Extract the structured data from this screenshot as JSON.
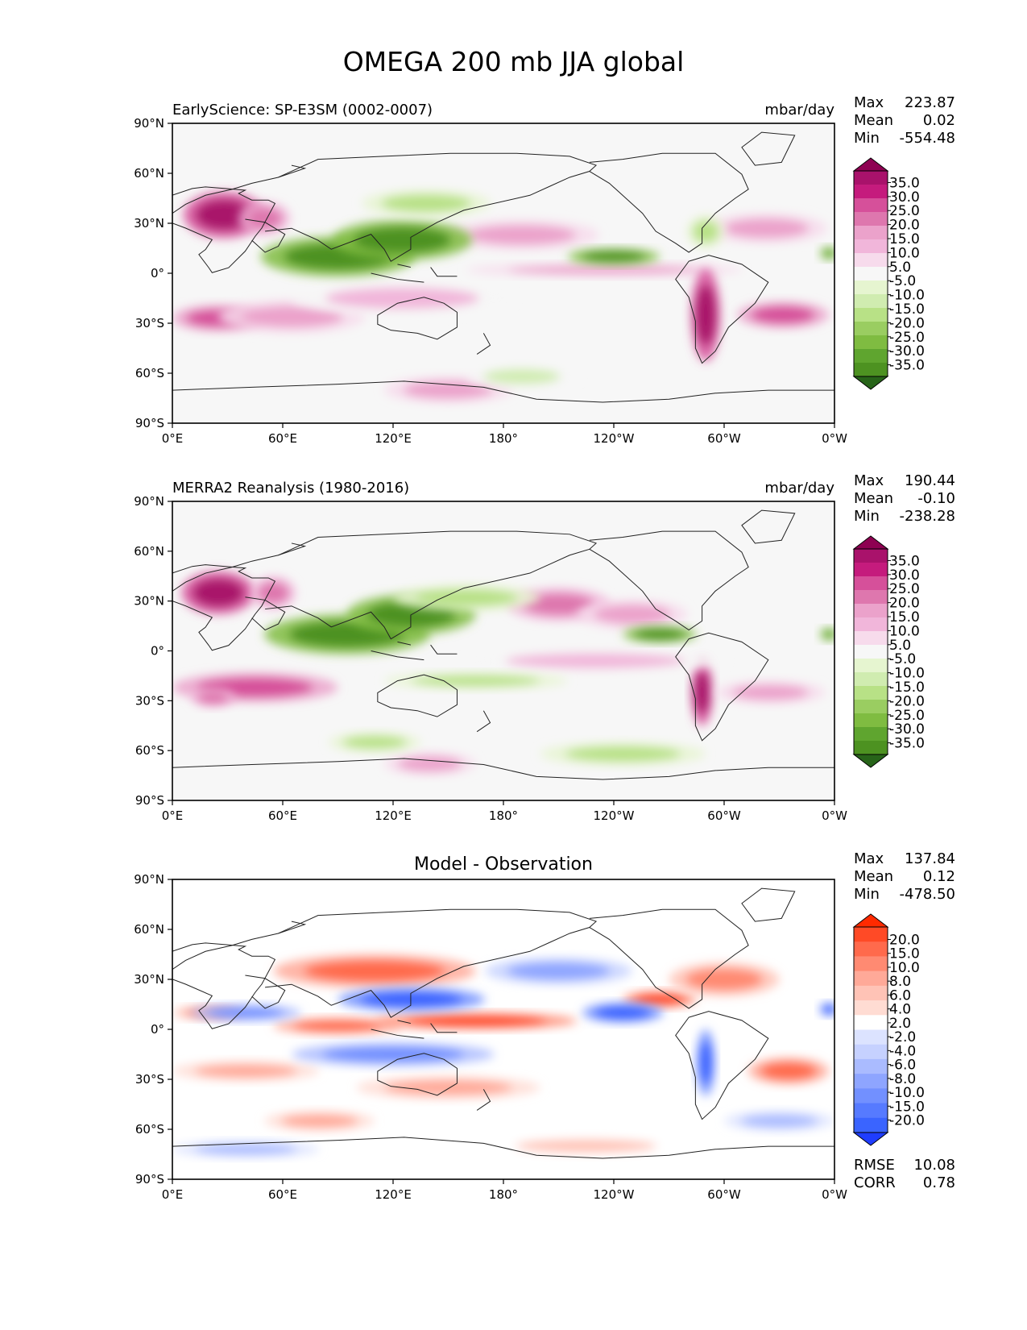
{
  "title": "OMEGA 200 mb JJA global",
  "units": "mbar/day",
  "colors": {
    "green_dark": "#276419",
    "green_mid": "#4d9221",
    "green_light": "#b8e186",
    "neutral": "#f7f7f7",
    "pink_light": "#f1b6da",
    "pink_mid": "#de77ae",
    "pink_dark": "#8e0152",
    "blue_dark": "#1f3dff",
    "blue_light": "#dce3ff",
    "red_light": "#ffd7cf",
    "red_dark": "#ff2a00",
    "coast": "#222222"
  },
  "xticks": [
    "0°E",
    "60°E",
    "120°E",
    "180°",
    "120°W",
    "60°W",
    "0°W"
  ],
  "yticks": [
    "90°N",
    "60°N",
    "30°N",
    "0°",
    "30°S",
    "60°S",
    "90°S"
  ],
  "chart_data": [
    {
      "type": "heatmap",
      "name": "test",
      "title": "EarlySciencе: SP-E3SM (0002-0007)",
      "units": "mbar/day",
      "stats": {
        "max": "223.87",
        "mean": "0.02",
        "min": "-554.48"
      },
      "stats_labels": {
        "max": "Max",
        "mean": "Mean",
        "min": "Min"
      },
      "xlim": [
        0,
        360
      ],
      "ylim": [
        -90,
        90
      ],
      "colorbar": {
        "levels": [
          "35.0",
          "30.0",
          "25.0",
          "20.0",
          "15.0",
          "10.0",
          "5.0",
          "-5.0",
          "-10.0",
          "-15.0",
          "-20.0",
          "-25.0",
          "-30.0",
          "-35.0"
        ],
        "colors": [
          "#8e0152",
          "#a9126b",
          "#c51b7d",
          "#d6509a",
          "#de77ae",
          "#eba2cb",
          "#f1b6da",
          "#f7dbec",
          "#f7f7f7",
          "#e6f5d0",
          "#d0ecb0",
          "#b8e186",
          "#9acd61",
          "#7fbc41",
          "#5fa52f",
          "#4d9221",
          "#276419"
        ]
      },
      "features": [
        {
          "kind": "pos",
          "lon": 28,
          "lat": 35,
          "rlon": 22,
          "rlat": 14,
          "level": 6
        },
        {
          "kind": "pos",
          "lon": 50,
          "lat": 33,
          "rlon": 14,
          "rlat": 10,
          "level": 3
        },
        {
          "kind": "pos",
          "lon": 25,
          "lat": -27,
          "rlon": 25,
          "rlat": 8,
          "level": 4
        },
        {
          "kind": "pos",
          "lon": 65,
          "lat": -26,
          "rlon": 40,
          "rlat": 10,
          "level": 2
        },
        {
          "kind": "pos",
          "lon": 125,
          "lat": -15,
          "rlon": 60,
          "rlat": 10,
          "level": 1
        },
        {
          "kind": "pos",
          "lon": 235,
          "lat": 2,
          "rlon": 75,
          "rlat": 4,
          "level": 2
        },
        {
          "kind": "pos",
          "lon": 290,
          "lat": -25,
          "rlon": 8,
          "rlat": 28,
          "level": 6
        },
        {
          "kind": "pos",
          "lon": 332,
          "lat": -25,
          "rlon": 25,
          "rlat": 8,
          "level": 4
        },
        {
          "kind": "pos",
          "lon": 323,
          "lat": 27,
          "rlon": 33,
          "rlat": 9,
          "level": 2
        },
        {
          "kind": "pos",
          "lon": 190,
          "lat": 23,
          "rlon": 42,
          "rlat": 9,
          "level": 2
        },
        {
          "kind": "pos",
          "lon": 150,
          "lat": -70,
          "rlon": 35,
          "rlat": 8,
          "level": 2
        },
        {
          "kind": "neg",
          "lon": 90,
          "lat": 10,
          "rlon": 42,
          "rlat": 12,
          "level": 6
        },
        {
          "kind": "neg",
          "lon": 125,
          "lat": 20,
          "rlon": 38,
          "rlat": 12,
          "level": 6
        },
        {
          "kind": "neg",
          "lon": 240,
          "lat": 10,
          "rlon": 25,
          "rlat": 5,
          "level": 6
        },
        {
          "kind": "neg",
          "lon": 138,
          "lat": 42,
          "rlon": 35,
          "rlat": 8,
          "level": 2
        },
        {
          "kind": "neg",
          "lon": 190,
          "lat": -62,
          "rlon": 30,
          "rlat": 7,
          "level": 1
        },
        {
          "kind": "neg",
          "lon": 357,
          "lat": 12,
          "rlon": 5,
          "rlat": 4,
          "level": 5
        },
        {
          "kind": "neg",
          "lon": 290,
          "lat": 25,
          "rlon": 10,
          "rlat": 10,
          "level": 2
        }
      ]
    },
    {
      "type": "heatmap",
      "name": "reference",
      "title": "MERRA2 Reanalysis (1980-2016)",
      "units": "mbar/day",
      "stats": {
        "max": "190.44",
        "mean": "-0.10",
        "min": "-238.28"
      },
      "stats_labels": {
        "max": "Max",
        "mean": "Mean",
        "min": "Min"
      },
      "xlim": [
        0,
        360
      ],
      "ylim": [
        -90,
        90
      ],
      "colorbar": {
        "levels": [
          "35.0",
          "30.0",
          "25.0",
          "20.0",
          "15.0",
          "10.0",
          "5.0",
          "-5.0",
          "-10.0",
          "-15.0",
          "-20.0",
          "-25.0",
          "-30.0",
          "-35.0"
        ],
        "colors": [
          "#8e0152",
          "#a9126b",
          "#c51b7d",
          "#d6509a",
          "#de77ae",
          "#eba2cb",
          "#f1b6da",
          "#f7dbec",
          "#f7f7f7",
          "#e6f5d0",
          "#d0ecb0",
          "#b8e186",
          "#9acd61",
          "#7fbc41",
          "#5fa52f",
          "#4d9221",
          "#276419"
        ]
      },
      "features": [
        {
          "kind": "pos",
          "lon": 25,
          "lat": 35,
          "rlon": 20,
          "rlat": 13,
          "level": 6
        },
        {
          "kind": "pos",
          "lon": 55,
          "lat": 35,
          "rlon": 12,
          "rlat": 10,
          "level": 3
        },
        {
          "kind": "pos",
          "lon": 45,
          "lat": -22,
          "rlon": 45,
          "rlat": 9,
          "level": 4
        },
        {
          "kind": "pos",
          "lon": 22,
          "lat": -28,
          "rlon": 12,
          "rlat": 6,
          "level": 3
        },
        {
          "kind": "pos",
          "lon": 210,
          "lat": 28,
          "rlon": 28,
          "rlat": 10,
          "level": 3
        },
        {
          "kind": "pos",
          "lon": 250,
          "lat": 22,
          "rlon": 30,
          "rlat": 9,
          "level": 2
        },
        {
          "kind": "pos",
          "lon": 288,
          "lat": -25,
          "rlon": 6,
          "rlat": 20,
          "level": 6
        },
        {
          "kind": "pos",
          "lon": 325,
          "lat": -25,
          "rlon": 30,
          "rlat": 7,
          "level": 2
        },
        {
          "kind": "pos",
          "lon": 230,
          "lat": -6,
          "rlon": 70,
          "rlat": 7,
          "level": 1
        },
        {
          "kind": "pos",
          "lon": 140,
          "lat": -68,
          "rlon": 25,
          "rlat": 7,
          "level": 2
        },
        {
          "kind": "neg",
          "lon": 95,
          "lat": 10,
          "rlon": 45,
          "rlat": 12,
          "level": 6
        },
        {
          "kind": "neg",
          "lon": 130,
          "lat": 22,
          "rlon": 35,
          "rlat": 12,
          "level": 6
        },
        {
          "kind": "neg",
          "lon": 265,
          "lat": 10,
          "rlon": 20,
          "rlat": 5,
          "level": 6
        },
        {
          "kind": "neg",
          "lon": 160,
          "lat": 32,
          "rlon": 40,
          "rlat": 8,
          "level": 2
        },
        {
          "kind": "neg",
          "lon": 165,
          "lat": -18,
          "rlon": 50,
          "rlat": 5,
          "level": 2
        },
        {
          "kind": "neg",
          "lon": 110,
          "lat": -55,
          "rlon": 25,
          "rlat": 6,
          "level": 2
        },
        {
          "kind": "neg",
          "lon": 245,
          "lat": -62,
          "rlon": 45,
          "rlat": 7,
          "level": 2
        },
        {
          "kind": "neg",
          "lon": 357,
          "lat": 10,
          "rlon": 5,
          "rlat": 4,
          "level": 5
        }
      ]
    },
    {
      "type": "heatmap",
      "name": "difference",
      "title": "Model - Observation",
      "units": "",
      "stats": {
        "max": "137.84",
        "mean": "0.12",
        "min": "-478.50"
      },
      "stats_labels": {
        "max": "Max",
        "mean": "Mean",
        "min": "Min"
      },
      "metrics": {
        "rmse_label": "RMSE",
        "rmse": "10.08",
        "corr_label": "CORR",
        "corr": "0.78"
      },
      "xlim": [
        0,
        360
      ],
      "ylim": [
        -90,
        90
      ],
      "colorbar": {
        "levels": [
          "20.0",
          "15.0",
          "10.0",
          "8.0",
          "6.0",
          "4.0",
          "2.0",
          "-2.0",
          "-4.0",
          "-6.0",
          "-8.0",
          "-10.0",
          "-15.0",
          "-20.0"
        ],
        "colors": [
          "#ff2a00",
          "#ff4a26",
          "#ff6a4c",
          "#ff8a72",
          "#ffa998",
          "#ffc3b6",
          "#ffdcd3",
          "#ffffff",
          "#dce3ff",
          "#c6d1ff",
          "#aabbff",
          "#8ea5ff",
          "#7290ff",
          "#567aff",
          "#3a64ff",
          "#1f3dff"
        ]
      },
      "features": [
        {
          "kind": "pos",
          "lon": 110,
          "lat": 35,
          "rlon": 55,
          "rlat": 10,
          "level": 5
        },
        {
          "kind": "pos",
          "lon": 90,
          "lat": 2,
          "rlon": 35,
          "rlat": 5,
          "level": 5
        },
        {
          "kind": "pos",
          "lon": 165,
          "lat": 5,
          "rlon": 55,
          "rlat": 5,
          "level": 6
        },
        {
          "kind": "pos",
          "lon": 265,
          "lat": 18,
          "rlon": 20,
          "rlat": 5,
          "level": 6
        },
        {
          "kind": "pos",
          "lon": 300,
          "lat": 30,
          "rlon": 30,
          "rlat": 10,
          "level": 4
        },
        {
          "kind": "pos",
          "lon": 335,
          "lat": -25,
          "rlon": 22,
          "rlat": 8,
          "level": 5
        },
        {
          "kind": "pos",
          "lon": 40,
          "lat": -25,
          "rlon": 40,
          "rlat": 6,
          "level": 3
        },
        {
          "kind": "pos",
          "lon": 150,
          "lat": -35,
          "rlon": 50,
          "rlat": 7,
          "level": 3
        },
        {
          "kind": "pos",
          "lon": 80,
          "lat": -55,
          "rlon": 30,
          "rlat": 6,
          "level": 3
        },
        {
          "kind": "pos",
          "lon": 225,
          "lat": -70,
          "rlon": 55,
          "rlat": 6,
          "level": 2
        },
        {
          "kind": "pos",
          "lon": 20,
          "lat": 10,
          "rlon": 20,
          "rlat": 4,
          "level": 4
        },
        {
          "kind": "neg",
          "lon": 130,
          "lat": 18,
          "rlon": 40,
          "rlat": 7,
          "level": 6
        },
        {
          "kind": "neg",
          "lon": 245,
          "lat": 10,
          "rlon": 22,
          "rlat": 6,
          "level": 6
        },
        {
          "kind": "neg",
          "lon": 120,
          "lat": -15,
          "rlon": 55,
          "rlat": 7,
          "level": 4
        },
        {
          "kind": "neg",
          "lon": 40,
          "lat": 10,
          "rlon": 30,
          "rlat": 5,
          "level": 4
        },
        {
          "kind": "neg",
          "lon": 290,
          "lat": -20,
          "rlon": 5,
          "rlat": 20,
          "level": 6
        },
        {
          "kind": "neg",
          "lon": 210,
          "lat": 35,
          "rlon": 40,
          "rlat": 8,
          "level": 3
        },
        {
          "kind": "neg",
          "lon": 330,
          "lat": -55,
          "rlon": 30,
          "rlat": 6,
          "level": 2
        },
        {
          "kind": "neg",
          "lon": 40,
          "lat": -72,
          "rlon": 40,
          "rlat": 5,
          "level": 2
        },
        {
          "kind": "neg",
          "lon": 357,
          "lat": 12,
          "rlon": 5,
          "rlat": 4,
          "level": 6
        }
      ]
    }
  ]
}
